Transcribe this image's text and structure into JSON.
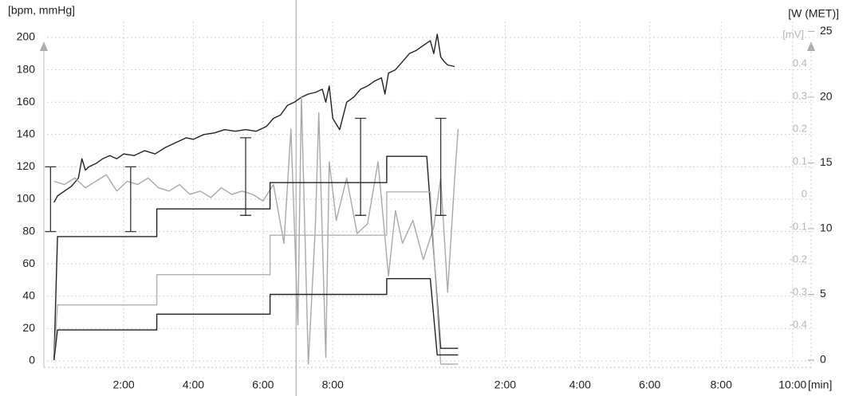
{
  "chart_data": {
    "type": "line",
    "y_label": "[bpm, mmHg]",
    "y2_label": "[W (MET)]",
    "y3_label": "[mV]",
    "x_label": "[min]",
    "xlim": [
      -0.2,
      21.8
    ],
    "xticks": [
      {
        "value": 2,
        "label": "2:00"
      },
      {
        "value": 4,
        "label": "4:00"
      },
      {
        "value": 6,
        "label": "6:00"
      },
      {
        "value": 8,
        "label": "8:00"
      },
      {
        "value": 12.95,
        "label": "2:00"
      },
      {
        "value": 15.1,
        "label": "4:00"
      },
      {
        "value": 17.1,
        "label": "6:00"
      },
      {
        "value": 19.15,
        "label": "8:00"
      },
      {
        "value": 21.2,
        "label": "10:00"
      }
    ],
    "ylim": [
      -4,
      210
    ],
    "yticks": [
      0,
      20,
      40,
      60,
      80,
      100,
      120,
      140,
      160,
      180,
      200
    ],
    "y2lim": [
      -0.55,
      25.77
    ],
    "y2ticks": [
      0,
      5,
      10,
      15,
      20,
      25
    ],
    "y3lim": [
      -0.53,
      0.53
    ],
    "y3ticks": [
      0.4,
      0.3,
      0.2,
      0.1,
      0,
      -0.1,
      -0.2,
      -0.3,
      -0.4
    ],
    "grid": true,
    "cursor_x": 6.95,
    "series": [
      {
        "color": "#222222",
        "axis": "y",
        "x": [
          0,
          0.1,
          0.3,
          0.5,
          0.7,
          0.8,
          0.9,
          1.0,
          1.2,
          1.4,
          1.6,
          1.8,
          2.0,
          2.3,
          2.6,
          2.9,
          3.2,
          3.5,
          3.8,
          4.0,
          4.3,
          4.6,
          4.9,
          5.2,
          5.5,
          5.8,
          6.1,
          6.3,
          6.5,
          6.7,
          6.9,
          7.1,
          7.3,
          7.5,
          7.7,
          7.8,
          7.9,
          8.0,
          8.2,
          8.4,
          8.6,
          8.8,
          9.0,
          9.2,
          9.4,
          9.5,
          9.6,
          9.8,
          10.0,
          10.2,
          10.4,
          10.6,
          10.8,
          10.9,
          11.0,
          11.1,
          11.2,
          11.3,
          11.5
        ],
        "values": [
          98,
          102,
          105,
          108,
          113,
          125,
          118,
          120,
          122,
          125,
          127,
          125,
          128,
          127,
          130,
          128,
          132,
          135,
          138,
          137,
          140,
          141,
          143,
          142,
          143,
          142,
          145,
          150,
          152,
          158,
          160,
          163,
          165,
          166,
          168,
          160,
          170,
          150,
          143,
          160,
          163,
          168,
          170,
          173,
          175,
          165,
          178,
          180,
          185,
          190,
          192,
          195,
          198,
          190,
          202,
          188,
          185,
          183,
          182
        ]
      },
      {
        "color": "#a8a8a8",
        "axis": "y3",
        "x": [
          0,
          0.3,
          0.6,
          0.9,
          1.2,
          1.5,
          1.8,
          2.1,
          2.4,
          2.7,
          3.0,
          3.3,
          3.6,
          3.9,
          4.2,
          4.5,
          4.8,
          5.1,
          5.4,
          5.7,
          6.0,
          6.3,
          6.6,
          6.8,
          7.0,
          7.1,
          7.3,
          7.5,
          7.6,
          7.8,
          7.9,
          8.1,
          8.4,
          8.7,
          9.0,
          9.3,
          9.6,
          9.8,
          10.0,
          10.3,
          10.6,
          10.9,
          11.1,
          11.3,
          11.5,
          11.6
        ],
        "values": [
          0.04,
          0.03,
          0.05,
          0.02,
          0.04,
          0.06,
          0.01,
          0.04,
          0.03,
          0.05,
          0.02,
          0.01,
          0.03,
          0,
          0.01,
          -0.01,
          0.02,
          0,
          0.01,
          0,
          -0.02,
          0.03,
          -0.15,
          0.2,
          -0.4,
          0.3,
          -0.52,
          -0.1,
          0.25,
          -0.5,
          0.1,
          -0.08,
          0.05,
          -0.12,
          -0.09,
          0.1,
          -0.25,
          -0.05,
          -0.15,
          -0.08,
          -0.2,
          -0.1,
          0.05,
          -0.3,
          0.05,
          0.2
        ]
      },
      {
        "color": "#222222",
        "axis": "y2",
        "x": [
          0,
          0.1,
          2.95,
          2.95,
          6.2,
          6.2,
          9.55,
          9.55,
          10.7,
          11.1,
          11.6
        ],
        "values": [
          0,
          9.4,
          9.4,
          11.5,
          11.5,
          13.5,
          13.5,
          15.5,
          15.5,
          0.9,
          0.9
        ]
      },
      {
        "color": "#b0b0b0",
        "axis": "y2",
        "x": [
          0,
          0.1,
          2.95,
          2.95,
          6.2,
          6.2,
          9.55,
          9.55,
          10.8,
          11.1,
          11.6
        ],
        "values": [
          0,
          4.2,
          4.2,
          6.5,
          6.5,
          9.5,
          9.5,
          12.8,
          12.8,
          -0.3,
          -0.3
        ]
      },
      {
        "color": "#222222",
        "axis": "y2",
        "x": [
          0,
          0.1,
          2.95,
          2.95,
          6.2,
          6.2,
          9.55,
          9.55,
          10.8,
          11.0,
          11.6
        ],
        "values": [
          0,
          2.3,
          2.3,
          3.5,
          3.5,
          5.0,
          5.0,
          6.2,
          6.2,
          0.4,
          0.4
        ]
      }
    ],
    "bp": {
      "color": "#333333",
      "x": [
        -0.1,
        2.2,
        5.5,
        8.8,
        11.1
      ],
      "low": [
        80,
        80,
        90,
        90,
        90
      ],
      "high": [
        120,
        120,
        138,
        150,
        150
      ]
    }
  }
}
